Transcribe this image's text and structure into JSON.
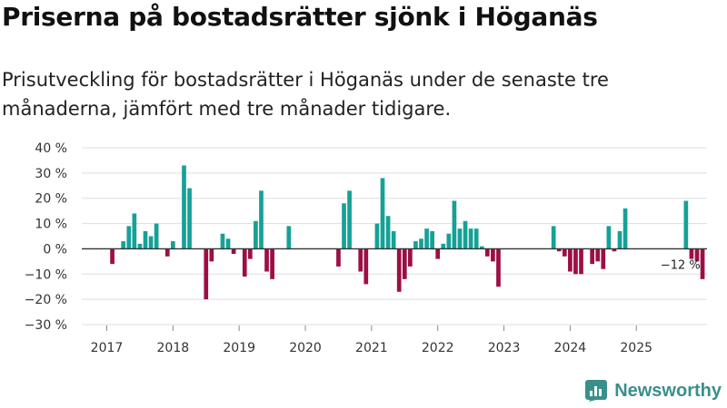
{
  "header": {
    "title": "Priserna på bostadsrätter sjönk i Höganäs",
    "subtitle": "Prisutveckling för bostadsrätter i Höganäs under de senaste tre månaderna, jämfört med tre månader tidigare."
  },
  "brand": {
    "name": "Newsworthy",
    "icon": "newsworthy-logo-icon"
  },
  "colors": {
    "positive": "#16a197",
    "negative": "#9c0f45",
    "grid": "#dddddd",
    "zero": "#333333",
    "text": "#333333"
  },
  "chart_data": {
    "type": "bar",
    "title": "Priserna på bostadsrätter sjönk i Höganäs",
    "xlabel": "",
    "ylabel": "",
    "ylim": [
      -30,
      40
    ],
    "yticks": [
      -30,
      -20,
      -10,
      0,
      10,
      20,
      30,
      40
    ],
    "ytick_labels": [
      "−30 %",
      "−20 %",
      "−10 %",
      "0 %",
      "10 %",
      "20 %",
      "30 %",
      "40 %"
    ],
    "grid": true,
    "start": "2017-01",
    "xtick_labels": [
      "2017",
      "2018",
      "2019",
      "2020",
      "2021",
      "2022",
      "2023",
      "2024",
      "2025"
    ],
    "values": [
      0,
      -6,
      0,
      3,
      9,
      14,
      2,
      7,
      5,
      10,
      0,
      -3,
      3,
      0,
      33,
      24,
      0,
      0,
      -20,
      -5,
      0,
      6,
      4,
      -2,
      0,
      -11,
      -4,
      11,
      23,
      -9,
      -12,
      0,
      0,
      9,
      0,
      0,
      0,
      0,
      0,
      0,
      0,
      0,
      -7,
      18,
      23,
      0,
      -9,
      -14,
      0,
      10,
      28,
      13,
      7,
      -17,
      -12,
      -7,
      3,
      4,
      8,
      7,
      -4,
      2,
      6,
      19,
      8,
      11,
      8,
      8,
      1,
      -3,
      -5,
      -15,
      0,
      0,
      0,
      0,
      0,
      0,
      0,
      0,
      0,
      9,
      -1,
      -3,
      -9,
      -10,
      -10,
      0,
      -6,
      -5,
      -8,
      9,
      -1,
      7,
      16,
      0,
      0,
      0,
      0,
      0,
      0,
      0,
      0,
      0,
      0,
      19,
      -4,
      -5,
      -12
    ],
    "annotation": {
      "label": "−12 %",
      "index": 104
    }
  }
}
